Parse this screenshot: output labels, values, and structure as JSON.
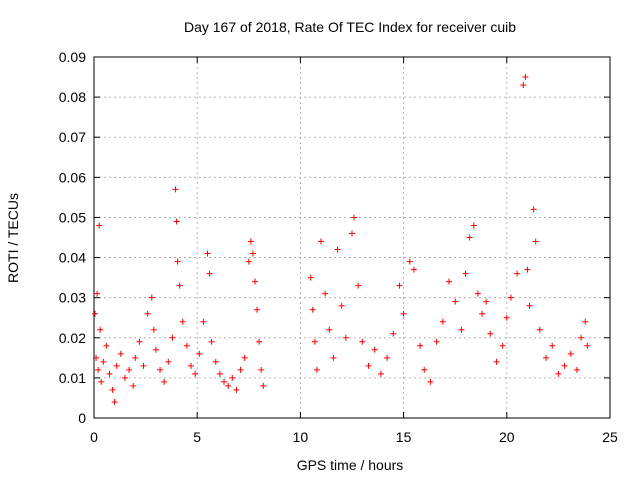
{
  "chart_data": {
    "type": "scatter",
    "title": "Day 167 of 2018, Rate Of TEC Index for receiver cuib",
    "xlabel": "GPS time / hours",
    "ylabel": "ROTI / TECUs",
    "xlim": [
      0,
      25
    ],
    "ylim": [
      0,
      0.09
    ],
    "x_ticks": [
      0,
      5,
      10,
      15,
      20,
      25
    ],
    "y_ticks": [
      0,
      0.01,
      0.02,
      0.03,
      0.04,
      0.05,
      0.06,
      0.07,
      0.08,
      0.09
    ],
    "x_tick_labels": [
      "0",
      "5",
      "10",
      "15",
      "20",
      "25"
    ],
    "y_tick_labels": [
      "0",
      "0.01",
      "0.02",
      "0.03",
      "0.04",
      "0.05",
      "0.06",
      "0.07",
      "0.08",
      "0.09"
    ],
    "grid": true,
    "marker": "+",
    "series_color": "#ff0000",
    "series": [
      {
        "name": "ROTI",
        "points": [
          [
            0.05,
            0.026
          ],
          [
            0.1,
            0.015
          ],
          [
            0.15,
            0.031
          ],
          [
            0.2,
            0.012
          ],
          [
            0.25,
            0.048
          ],
          [
            0.3,
            0.022
          ],
          [
            0.35,
            0.009
          ],
          [
            0.45,
            0.014
          ],
          [
            0.6,
            0.018
          ],
          [
            0.75,
            0.011
          ],
          [
            0.9,
            0.007
          ],
          [
            1.0,
            0.004
          ],
          [
            1.1,
            0.013
          ],
          [
            1.3,
            0.016
          ],
          [
            1.5,
            0.01
          ],
          [
            1.7,
            0.012
          ],
          [
            1.9,
            0.008
          ],
          [
            2.0,
            0.015
          ],
          [
            2.2,
            0.019
          ],
          [
            2.4,
            0.013
          ],
          [
            2.6,
            0.026
          ],
          [
            2.8,
            0.03
          ],
          [
            2.9,
            0.022
          ],
          [
            3.0,
            0.017
          ],
          [
            3.2,
            0.012
          ],
          [
            3.4,
            0.009
          ],
          [
            3.6,
            0.014
          ],
          [
            3.8,
            0.02
          ],
          [
            3.95,
            0.057
          ],
          [
            4.0,
            0.049
          ],
          [
            4.05,
            0.039
          ],
          [
            4.15,
            0.033
          ],
          [
            4.3,
            0.024
          ],
          [
            4.5,
            0.018
          ],
          [
            4.7,
            0.013
          ],
          [
            4.9,
            0.011
          ],
          [
            5.1,
            0.016
          ],
          [
            5.3,
            0.024
          ],
          [
            5.5,
            0.041
          ],
          [
            5.6,
            0.036
          ],
          [
            5.7,
            0.019
          ],
          [
            5.9,
            0.014
          ],
          [
            6.1,
            0.011
          ],
          [
            6.3,
            0.009
          ],
          [
            6.5,
            0.008
          ],
          [
            6.7,
            0.01
          ],
          [
            6.9,
            0.007
          ],
          [
            7.1,
            0.012
          ],
          [
            7.3,
            0.015
          ],
          [
            7.5,
            0.039
          ],
          [
            7.6,
            0.044
          ],
          [
            7.7,
            0.041
          ],
          [
            7.8,
            0.034
          ],
          [
            7.9,
            0.027
          ],
          [
            8.0,
            0.019
          ],
          [
            8.1,
            0.012
          ],
          [
            8.2,
            0.008
          ],
          [
            10.5,
            0.035
          ],
          [
            10.6,
            0.027
          ],
          [
            10.7,
            0.019
          ],
          [
            10.8,
            0.012
          ],
          [
            11.0,
            0.044
          ],
          [
            11.2,
            0.031
          ],
          [
            11.4,
            0.022
          ],
          [
            11.6,
            0.015
          ],
          [
            11.8,
            0.042
          ],
          [
            12.0,
            0.028
          ],
          [
            12.2,
            0.02
          ],
          [
            12.5,
            0.046
          ],
          [
            12.6,
            0.05
          ],
          [
            12.8,
            0.033
          ],
          [
            13.0,
            0.019
          ],
          [
            13.3,
            0.013
          ],
          [
            13.6,
            0.017
          ],
          [
            13.9,
            0.011
          ],
          [
            14.2,
            0.015
          ],
          [
            14.5,
            0.021
          ],
          [
            14.8,
            0.033
          ],
          [
            15.0,
            0.026
          ],
          [
            15.3,
            0.039
          ],
          [
            15.5,
            0.037
          ],
          [
            15.8,
            0.018
          ],
          [
            16.0,
            0.012
          ],
          [
            16.3,
            0.009
          ],
          [
            16.6,
            0.019
          ],
          [
            16.9,
            0.024
          ],
          [
            17.2,
            0.034
          ],
          [
            17.5,
            0.029
          ],
          [
            17.8,
            0.022
          ],
          [
            18.0,
            0.036
          ],
          [
            18.2,
            0.045
          ],
          [
            18.4,
            0.048
          ],
          [
            18.6,
            0.031
          ],
          [
            18.8,
            0.026
          ],
          [
            19.0,
            0.029
          ],
          [
            19.2,
            0.021
          ],
          [
            19.5,
            0.014
          ],
          [
            19.8,
            0.018
          ],
          [
            20.0,
            0.025
          ],
          [
            20.2,
            0.03
          ],
          [
            20.5,
            0.036
          ],
          [
            20.8,
            0.083
          ],
          [
            20.9,
            0.085
          ],
          [
            21.0,
            0.037
          ],
          [
            21.1,
            0.028
          ],
          [
            21.3,
            0.052
          ],
          [
            21.4,
            0.044
          ],
          [
            21.6,
            0.022
          ],
          [
            21.9,
            0.015
          ],
          [
            22.2,
            0.018
          ],
          [
            22.5,
            0.011
          ],
          [
            22.8,
            0.013
          ],
          [
            23.1,
            0.016
          ],
          [
            23.4,
            0.012
          ],
          [
            23.6,
            0.02
          ],
          [
            23.8,
            0.024
          ],
          [
            23.9,
            0.018
          ]
        ]
      }
    ]
  }
}
